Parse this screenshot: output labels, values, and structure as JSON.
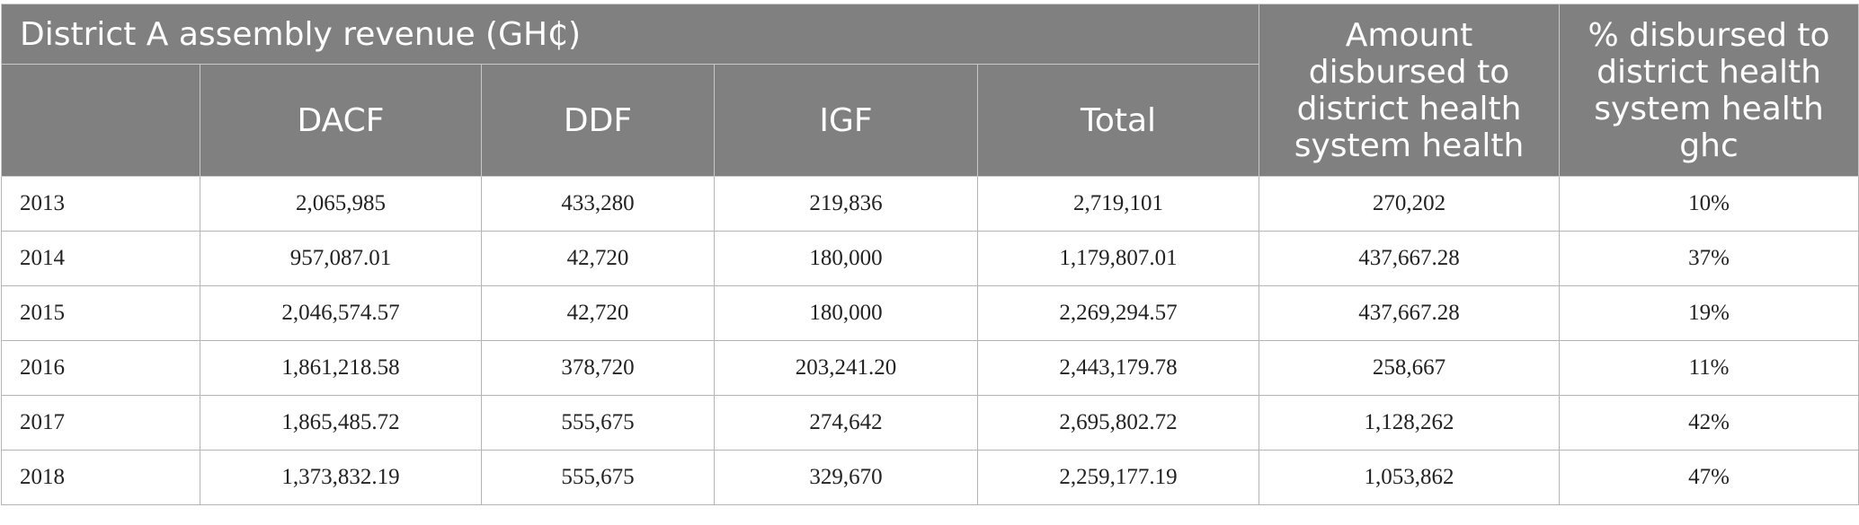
{
  "table": {
    "group_header": "District A assembly revenue (GH₵)",
    "col_amount_header": "Amount disbursed to district health system health",
    "col_percent_header": "% disbursed to district health system health ghc",
    "sub_headers": [
      "",
      "DACF",
      "DDF",
      "IGF",
      "Total"
    ],
    "rows": [
      [
        "2013",
        "2,065,985",
        "433,280",
        "219,836",
        "2,719,101",
        "270,202",
        "10%"
      ],
      [
        "2014",
        "957,087.01",
        "42,720",
        "180,000",
        "1,179,807.01",
        "437,667.28",
        "37%"
      ],
      [
        "2015",
        "2,046,574.57",
        "42,720",
        "180,000",
        "2,269,294.57",
        "437,667.28",
        "19%"
      ],
      [
        "2016",
        "1,861,218.58",
        "378,720",
        "203,241.20",
        "2,443,179.78",
        "258,667",
        "11%"
      ],
      [
        "2017",
        "1,865,485.72",
        "555,675",
        "274,642",
        "2,695,802.72",
        "1,128,262",
        "42%"
      ],
      [
        "2018",
        "1,373,832.19",
        "555,675",
        "329,670",
        "2,259,177.19",
        "1,053,862",
        "47%"
      ]
    ]
  },
  "colors": {
    "header_bg": "#808080",
    "header_text": "#ffffff",
    "grid": "#b4b4b4"
  }
}
